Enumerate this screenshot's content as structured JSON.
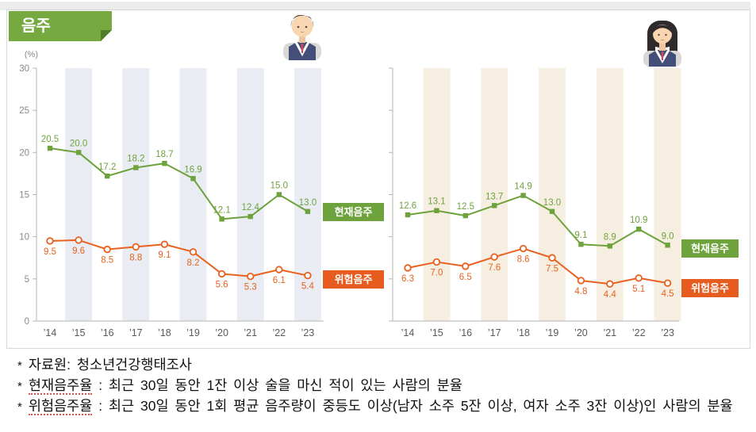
{
  "title": "음주",
  "legend": {
    "current": "현재음주",
    "risk": "위험음주"
  },
  "colors": {
    "header_green": "#76a93f",
    "header_fold_green": "#517d2b",
    "line_green": "#6da23c",
    "line_orange": "#e8611f",
    "stripe_blue_gray": "#e9edf3",
    "stripe_beige": "#f6efe1"
  },
  "icons": [
    "male-student-icon",
    "female-student-icon"
  ],
  "chart_data": [
    {
      "type": "line",
      "avatar": "male-student-icon",
      "y_axis_unit": "(%)",
      "categories": [
        "’14",
        "’15",
        "’16",
        "’17",
        "’18",
        "’19",
        "’20",
        "’21",
        "’22",
        "’23"
      ],
      "series": [
        {
          "name": "현재음주",
          "color": "#6da23c",
          "marker": "square",
          "label_position": "above",
          "values": [
            20.5,
            20.0,
            17.2,
            18.2,
            18.7,
            16.9,
            12.1,
            12.4,
            15.0,
            13.0
          ]
        },
        {
          "name": "위험음주",
          "color": "#e8611f",
          "marker": "open-circle",
          "label_position": "below",
          "values": [
            9.5,
            9.6,
            8.5,
            8.8,
            9.1,
            8.2,
            5.6,
            5.3,
            6.1,
            5.4
          ]
        }
      ],
      "ylim": [
        0,
        30
      ],
      "yticks": [
        0,
        5,
        10,
        15,
        20,
        25,
        30
      ],
      "y_axis_labels_visible": true,
      "grid": false,
      "stripe_color": "#e9edf3",
      "stripes_on": [
        "’15",
        "’17",
        "’19",
        "’21",
        "’23"
      ],
      "legend_position": "right"
    },
    {
      "type": "line",
      "avatar": "female-student-icon",
      "y_axis_unit": "",
      "categories": [
        "’14",
        "’15",
        "’16",
        "’17",
        "’18",
        "’19",
        "’20",
        "’21",
        "’22",
        "’23"
      ],
      "series": [
        {
          "name": "현재음주",
          "color": "#6da23c",
          "marker": "square",
          "label_position": "above",
          "values": [
            12.6,
            13.1,
            12.5,
            13.7,
            14.9,
            13.0,
            9.1,
            8.9,
            10.9,
            9.0
          ]
        },
        {
          "name": "위험음주",
          "color": "#e8611f",
          "marker": "open-circle",
          "label_position": "below",
          "values": [
            6.3,
            7.0,
            6.5,
            7.6,
            8.6,
            7.5,
            4.8,
            4.4,
            5.1,
            4.5
          ]
        }
      ],
      "ylim": [
        0,
        30
      ],
      "yticks": [
        0,
        5,
        10,
        15,
        20,
        25,
        30
      ],
      "y_axis_labels_visible": false,
      "grid": false,
      "stripe_color": "#f6efe1",
      "stripes_on": [
        "’15",
        "’17",
        "’19",
        "’21",
        "’23"
      ],
      "legend_position": "right"
    }
  ],
  "footnotes": [
    {
      "bullet": "*",
      "term": "자료원:",
      "text": " 청소년건강행태조사"
    },
    {
      "bullet": "*",
      "term": "현재음주율",
      "text": " : 최근 30일 동안 1잔 이상 술을 마신 적이 있는 사람의 분율"
    },
    {
      "bullet": "*",
      "term": "위험음주율",
      "text": " : 최근 30일 동안 1회 평균 음주량이 중등도 이상(남자 소주 5잔 이상, 여자 소주 3잔 이상)인 사람의 분율"
    }
  ]
}
